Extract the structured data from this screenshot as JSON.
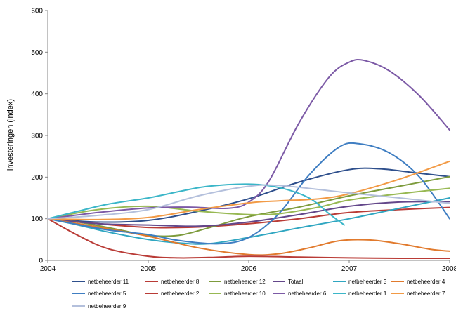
{
  "chart_data": {
    "type": "line",
    "title": "",
    "xlabel": "",
    "ylabel": "investeringen (index)",
    "xlim": [
      2004,
      2008
    ],
    "ylim": [
      0,
      600
    ],
    "x_ticks": [
      "2004",
      "2005",
      "2006",
      "2007",
      "2008"
    ],
    "y_ticks": [
      "0",
      "100",
      "200",
      "300",
      "400",
      "500",
      "600"
    ],
    "grid": false,
    "legend_position": "bottom",
    "series": [
      {
        "name": "netbeheerder 11",
        "color": "#2e4f8c",
        "points": [
          [
            2004,
            100
          ],
          [
            2004.5,
            92
          ],
          [
            2005,
            96
          ],
          [
            2005.5,
            118
          ],
          [
            2006,
            148
          ],
          [
            2006.5,
            188
          ],
          [
            2007,
            218
          ],
          [
            2007.3,
            220
          ],
          [
            2007.6,
            212
          ],
          [
            2008,
            201
          ]
        ]
      },
      {
        "name": "netbeheerder 8",
        "color": "#b93b36",
        "points": [
          [
            2004,
            100
          ],
          [
            2004.5,
            88
          ],
          [
            2005,
            79
          ],
          [
            2005.5,
            80
          ],
          [
            2006,
            88
          ],
          [
            2006.5,
            100
          ],
          [
            2007,
            115
          ],
          [
            2007.5,
            122
          ],
          [
            2008,
            127
          ]
        ]
      },
      {
        "name": "netbeheerder 12",
        "color": "#7d9b3c",
        "points": [
          [
            2004,
            100
          ],
          [
            2004.3,
            92
          ],
          [
            2004.7,
            74
          ],
          [
            2005,
            60
          ],
          [
            2005.3,
            60
          ],
          [
            2005.6,
            78
          ],
          [
            2006,
            105
          ],
          [
            2006.5,
            128
          ],
          [
            2007,
            155
          ],
          [
            2007.5,
            178
          ],
          [
            2008,
            201
          ]
        ]
      },
      {
        "name": "Totaal",
        "color": "#63478a",
        "points": [
          [
            2004,
            100
          ],
          [
            2004.5,
            88
          ],
          [
            2005,
            85
          ],
          [
            2005.5,
            82
          ],
          [
            2006,
            92
          ],
          [
            2006.5,
            110
          ],
          [
            2007,
            130
          ],
          [
            2007.5,
            140
          ],
          [
            2008,
            141
          ]
        ]
      },
      {
        "name": "netbeheerder 3",
        "color": "#2fa6c1",
        "points": [
          [
            2004,
            100
          ],
          [
            2004.3,
            85
          ],
          [
            2004.6,
            68
          ],
          [
            2005,
            50
          ],
          [
            2005.3,
            42
          ],
          [
            2005.6,
            40
          ],
          [
            2006,
            55
          ],
          [
            2006.5,
            78
          ],
          [
            2007,
            100
          ],
          [
            2007.5,
            125
          ],
          [
            2008,
            150
          ]
        ]
      },
      {
        "name": "netbeheerder 4",
        "color": "#e17a2d",
        "points": [
          [
            2004,
            100
          ],
          [
            2004.5,
            80
          ],
          [
            2005,
            58
          ],
          [
            2005.5,
            30
          ],
          [
            2006,
            14
          ],
          [
            2006.3,
            16
          ],
          [
            2006.6,
            30
          ],
          [
            2006.9,
            47
          ],
          [
            2007.2,
            49
          ],
          [
            2007.5,
            40
          ],
          [
            2007.8,
            27
          ],
          [
            2008,
            22
          ]
        ]
      },
      {
        "name": "netbeheerder 5",
        "color": "#3f7ec2",
        "points": [
          [
            2004,
            100
          ],
          [
            2004.3,
            86
          ],
          [
            2004.6,
            73
          ],
          [
            2005,
            62
          ],
          [
            2005.3,
            48
          ],
          [
            2005.7,
            40
          ],
          [
            2006,
            55
          ],
          [
            2006.3,
            112
          ],
          [
            2006.6,
            205
          ],
          [
            2006.9,
            272
          ],
          [
            2007.1,
            280
          ],
          [
            2007.4,
            258
          ],
          [
            2007.7,
            200
          ],
          [
            2008,
            100
          ]
        ]
      },
      {
        "name": "netbeheerder 2",
        "color": "#b93b36",
        "points": [
          [
            2004,
            100
          ],
          [
            2004.3,
            60
          ],
          [
            2004.6,
            28
          ],
          [
            2005,
            10
          ],
          [
            2005.3,
            6
          ],
          [
            2005.6,
            7
          ],
          [
            2006,
            10
          ],
          [
            2006.5,
            8
          ],
          [
            2007,
            6
          ],
          [
            2007.5,
            5
          ],
          [
            2008,
            5
          ]
        ]
      },
      {
        "name": "netbeheerder 10",
        "color": "#97b852",
        "points": [
          [
            2004,
            100
          ],
          [
            2004.5,
            122
          ],
          [
            2005,
            130
          ],
          [
            2005.5,
            118
          ],
          [
            2006,
            110
          ],
          [
            2006.3,
            112
          ],
          [
            2006.7,
            128
          ],
          [
            2007,
            145
          ],
          [
            2007.5,
            160
          ],
          [
            2008,
            173
          ]
        ]
      },
      {
        "name": "netbeheerder 6",
        "color": "#7c5aa6",
        "points": [
          [
            2004,
            100
          ],
          [
            2004.5,
            115
          ],
          [
            2005,
            126
          ],
          [
            2005.4,
            128
          ],
          [
            2005.8,
            125
          ],
          [
            2006,
            140
          ],
          [
            2006.2,
            190
          ],
          [
            2006.5,
            330
          ],
          [
            2006.8,
            440
          ],
          [
            2007,
            476
          ],
          [
            2007.15,
            480
          ],
          [
            2007.4,
            455
          ],
          [
            2007.7,
            395
          ],
          [
            2008,
            313
          ]
        ]
      },
      {
        "name": "netbeheerder 1",
        "color": "#3bb6c8",
        "points": [
          [
            2004,
            100
          ],
          [
            2004.3,
            118
          ],
          [
            2004.6,
            135
          ],
          [
            2005,
            150
          ],
          [
            2005.3,
            165
          ],
          [
            2005.6,
            178
          ],
          [
            2006,
            183
          ],
          [
            2006.3,
            175
          ],
          [
            2006.6,
            150
          ],
          [
            2006.8,
            112
          ],
          [
            2006.95,
            85
          ]
        ]
      },
      {
        "name": "netbeheerder 7",
        "color": "#f29a45",
        "points": [
          [
            2004,
            100
          ],
          [
            2004.5,
            98
          ],
          [
            2005,
            103
          ],
          [
            2005.5,
            122
          ],
          [
            2006,
            138
          ],
          [
            2006.3,
            143
          ],
          [
            2006.7,
            148
          ],
          [
            2007,
            160
          ],
          [
            2007.5,
            195
          ],
          [
            2008,
            238
          ]
        ]
      },
      {
        "name": "netbeheerder 9",
        "color": "#b4c0dc",
        "points": [
          [
            2004,
            100
          ],
          [
            2004.5,
            108
          ],
          [
            2005,
            122
          ],
          [
            2005.5,
            155
          ],
          [
            2006,
            178
          ],
          [
            2006.3,
            180
          ],
          [
            2006.7,
            170
          ],
          [
            2007,
            162
          ],
          [
            2007.5,
            150
          ],
          [
            2008,
            137
          ]
        ]
      }
    ]
  }
}
